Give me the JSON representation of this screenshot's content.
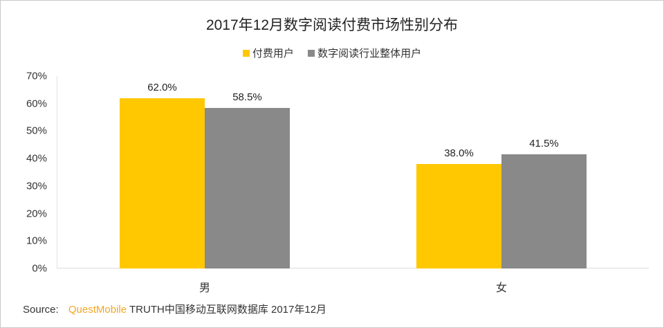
{
  "title": "2017年12月数字阅读付费市场性别分布",
  "legend": [
    {
      "label": "付费用户",
      "color": "#FFC800"
    },
    {
      "label": "数字阅读行业整体用户",
      "color": "#898989"
    }
  ],
  "source": {
    "prefix": "Source:",
    "brand": "QuestMobile",
    "text": "TRUTH中国移动互联网数据库 2017年12月"
  },
  "chart_data": {
    "type": "bar",
    "title": "2017年12月数字阅读付费市场性别分布",
    "xlabel": "",
    "ylabel": "",
    "categories": [
      "男",
      "女"
    ],
    "series": [
      {
        "name": "付费用户",
        "values": [
          62.0,
          38.0
        ],
        "color": "#FFC800"
      },
      {
        "name": "数字阅读行业整体用户",
        "values": [
          58.5,
          41.5
        ],
        "color": "#898989"
      }
    ],
    "value_labels": [
      [
        "62.0%",
        "38.0%"
      ],
      [
        "58.5%",
        "41.5%"
      ]
    ],
    "ylim": [
      0,
      70
    ],
    "yticks": [
      "0%",
      "10%",
      "20%",
      "30%",
      "40%",
      "50%",
      "60%",
      "70%"
    ],
    "grid": false,
    "legend_position": "top"
  }
}
